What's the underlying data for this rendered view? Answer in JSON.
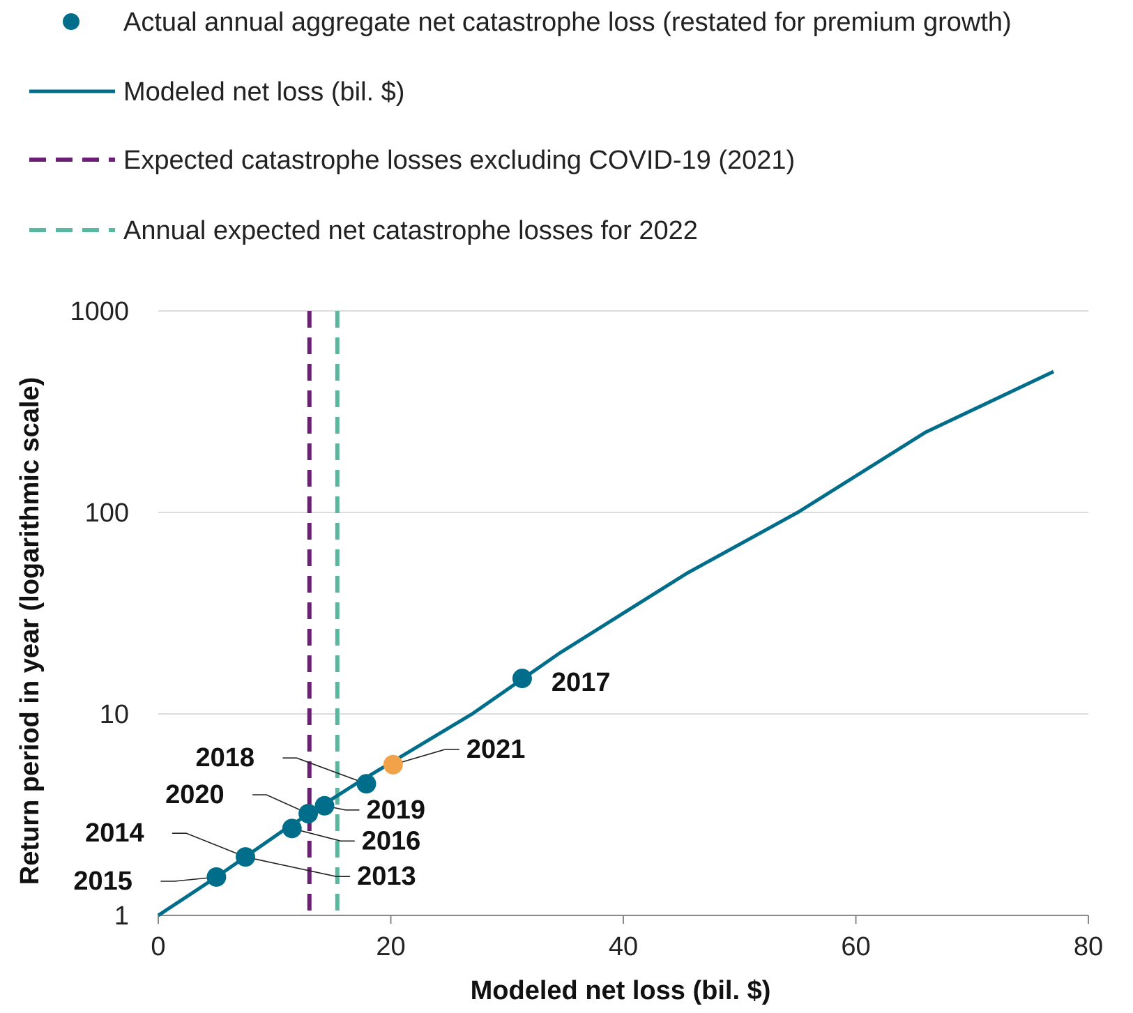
{
  "chart_data": {
    "type": "line",
    "xlabel": "Modeled net loss (bil. $)",
    "ylabel": "Return period in year (logarithmic scale)",
    "xlim": [
      0,
      80
    ],
    "ylim": [
      1,
      1000
    ],
    "y_scale": "log",
    "x_ticks": [
      "0",
      "20",
      "40",
      "60",
      "80"
    ],
    "y_ticks": [
      "1",
      "10",
      "100",
      "1000"
    ],
    "grid": "horizontal",
    "legend": [
      {
        "label": "Actual annual aggregate net catastrophe loss (restated for premium growth)",
        "marker": "dot",
        "color": "#006e8a"
      },
      {
        "label": "Modeled net loss (bil. $)",
        "marker": "line",
        "color": "#006e8a"
      },
      {
        "label": "Expected catastrophe losses excluding COVID-19 (2021)",
        "marker": "dashed",
        "color": "#6b2075"
      },
      {
        "label": "Annual expected net catastrophe losses for 2022",
        "marker": "dashed",
        "color": "#5ab7a0"
      }
    ],
    "curve": {
      "name": "Modeled net loss (bil. $)",
      "color": "#006e8a",
      "points": [
        [
          0,
          1
        ],
        [
          5,
          1.55
        ],
        [
          11,
          2.7
        ],
        [
          17,
          4.5
        ],
        [
          21,
          6.2
        ],
        [
          27,
          10
        ],
        [
          34.5,
          20
        ],
        [
          45.5,
          50
        ],
        [
          55,
          100
        ],
        [
          66,
          250
        ],
        [
          77,
          500
        ]
      ]
    },
    "vlines": [
      {
        "name": "Expected catastrophe losses excluding COVID-19 (2021)",
        "x": 13,
        "color": "#6b2075"
      },
      {
        "name": "Annual expected net catastrophe losses for 2022",
        "x": 15.4,
        "color": "#5ab7a0"
      }
    ],
    "points": [
      {
        "year": "2015",
        "x": 5,
        "y": 1.55,
        "color": "#006e8a",
        "label_dx": -205,
        "label_dy": 18,
        "label_anchor": "start",
        "leader": true
      },
      {
        "year": "2014",
        "x": 7.5,
        "y": 1.95,
        "color": "#006e8a",
        "label_dx": -230,
        "label_dy": -22,
        "label_anchor": "start",
        "leader": true,
        "leader_to": 5
      },
      {
        "year": "2013",
        "x": 7.5,
        "y": 1.95,
        "color": "#006e8a",
        "label_dx": 160,
        "label_dy": 40,
        "label_anchor": "start",
        "leader": true
      },
      {
        "year": "2016",
        "x": 11.5,
        "y": 2.7,
        "color": "#006e8a",
        "label_dx": 100,
        "label_dy": 30,
        "label_anchor": "start",
        "leader": true
      },
      {
        "year": "2020",
        "x": 12.9,
        "y": 3.2,
        "color": "#006e8a",
        "label_dx": -205,
        "label_dy": -15,
        "label_anchor": "start",
        "leader": true
      },
      {
        "year": "2019",
        "x": 14.3,
        "y": 3.5,
        "color": "#006e8a",
        "label_dx": 60,
        "label_dy": 18,
        "label_anchor": "start",
        "leader": true
      },
      {
        "year": "2018",
        "x": 17.9,
        "y": 4.5,
        "color": "#006e8a",
        "label_dx": -245,
        "label_dy": -25,
        "label_anchor": "start",
        "leader": true
      },
      {
        "year": "2021",
        "x": 20.2,
        "y": 5.6,
        "color": "#f2a34a",
        "label_dx": 105,
        "label_dy": -10,
        "label_anchor": "start",
        "leader": true
      },
      {
        "year": "2017",
        "x": 31.3,
        "y": 15,
        "color": "#006e8a",
        "label_dx": 42,
        "label_dy": 18,
        "label_anchor": "start",
        "leader": false
      }
    ]
  }
}
